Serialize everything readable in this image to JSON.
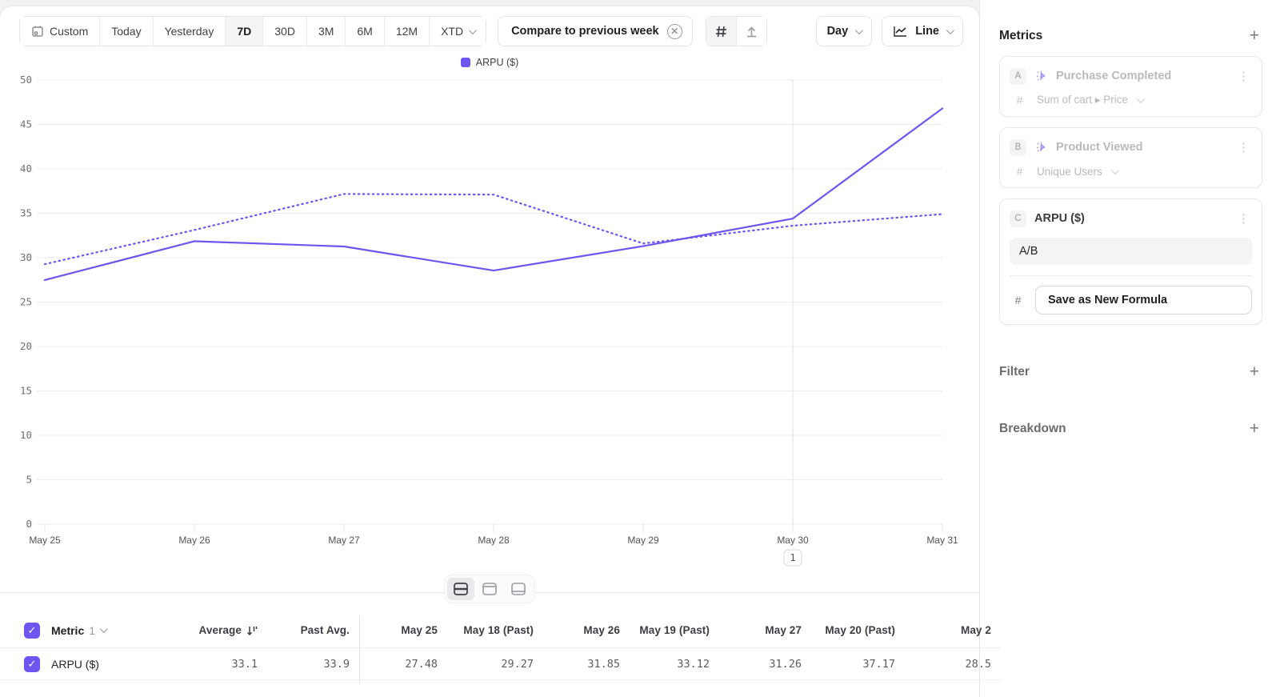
{
  "accent": "#6d56f0",
  "toolbar": {
    "date_ranges": [
      "Custom",
      "Today",
      "Yesterday",
      "7D",
      "30D",
      "3M",
      "6M",
      "12M",
      "XTD"
    ],
    "selected_range": "7D",
    "compare_label": "Compare to previous week",
    "day_label": "Day",
    "chart_type_label": "Line"
  },
  "icons": {
    "custom_range": "calendar",
    "compare_dismiss": "circle-x",
    "values_toggle": "hash",
    "annotations_toggle": "arrow-up-marker",
    "chart_type": "line-chart",
    "sort": "sort-descending",
    "layout_views": [
      "split-view",
      "chart-focus",
      "table-focus"
    ]
  },
  "legend": {
    "label": "ARPU ($)",
    "color": "#6d56f0"
  },
  "chart_data": {
    "type": "line",
    "title": "",
    "x": [
      "May 25",
      "May 26",
      "May 27",
      "May 28",
      "May 29",
      "May 30",
      "May 31"
    ],
    "series": [
      {
        "name": "ARPU ($)",
        "style": "solid",
        "color": "#6d56f0",
        "values": [
          27.48,
          31.85,
          31.26,
          28.55,
          31.3,
          34.4,
          46.8
        ]
      },
      {
        "name": "ARPU ($) previous week",
        "style": "dotted",
        "color": "#6d56f0",
        "values": [
          29.27,
          33.12,
          37.17,
          37.1,
          31.6,
          33.6,
          34.9
        ]
      }
    ],
    "ylim": [
      0,
      50
    ],
    "yticks": [
      0,
      5,
      10,
      15,
      20,
      25,
      30,
      35,
      40,
      45,
      50
    ],
    "grid": true,
    "legend_position": "top-center"
  },
  "annotation": {
    "label": "1",
    "x": "May 30"
  },
  "chart_footer": {
    "views": [
      "split-view",
      "chart-focus",
      "table-focus"
    ],
    "selected": "split-view"
  },
  "table": {
    "metric_label": "Metric",
    "metric_count": "1",
    "headers": [
      "Average",
      "Past Avg.",
      "May 25",
      "May 18 (Past)",
      "May 26",
      "May 19 (Past)",
      "May 27",
      "May 20 (Past)",
      "May 2"
    ],
    "rows": [
      {
        "name": "ARPU ($)",
        "checked": true,
        "values": [
          "33.1",
          "33.9",
          "27.48",
          "29.27",
          "31.85",
          "33.12",
          "31.26",
          "37.17",
          "28.5"
        ]
      }
    ]
  },
  "sidebar": {
    "metrics_title": "Metrics",
    "cards": [
      {
        "badge": "A",
        "name": "Purchase Completed",
        "measure_prefix": "#",
        "measure": "Sum of cart ▸ Price",
        "disabled": true
      },
      {
        "badge": "B",
        "name": "Product Viewed",
        "measure_prefix": "#",
        "measure": "Unique Users",
        "disabled": true
      },
      {
        "badge": "C",
        "name": "ARPU ($)",
        "formula": "A/B",
        "save_button_label": "Save as New Formula",
        "disabled": false
      }
    ],
    "filter_title": "Filter",
    "breakdown_title": "Breakdown"
  }
}
